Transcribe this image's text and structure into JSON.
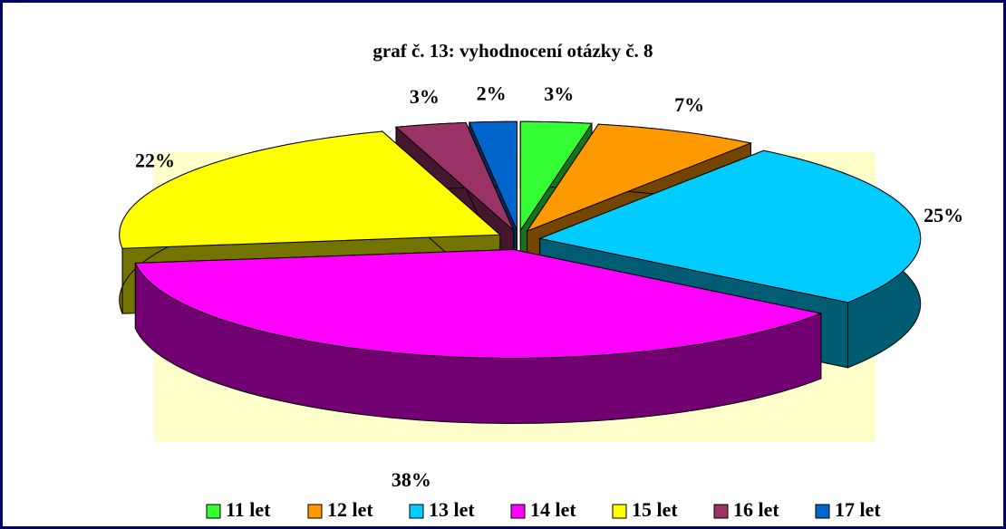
{
  "chart_data": {
    "type": "pie",
    "title": "graf č. 13: vyhodnocení otázky č. 8",
    "categories": [
      "11 let",
      "12 let",
      "13 let",
      "14 let",
      "15 let",
      "16 let",
      "17 let"
    ],
    "values": [
      3,
      7,
      25,
      38,
      22,
      3,
      2
    ],
    "value_labels": [
      "3%",
      "7%",
      "25%",
      "38%",
      "22%",
      "3%",
      "2%"
    ],
    "colors": [
      "#33ff33",
      "#ff9900",
      "#00ccff",
      "#ff00ff",
      "#ffff00",
      "#993366",
      "#0066cc"
    ],
    "legend": "bottom"
  }
}
